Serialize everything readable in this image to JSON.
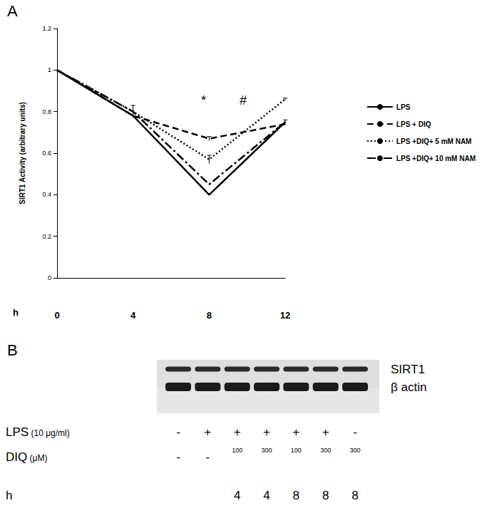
{
  "chart_data": {
    "type": "line",
    "panel": "A",
    "x_label": "h",
    "y_label": "SIRT1 Activity (arbitrary units)",
    "categories": [
      "0",
      "4",
      "8",
      "12"
    ],
    "ylim": [
      0,
      1.2
    ],
    "yticks": [
      0,
      0.2,
      0.4,
      0.6,
      0.8,
      1,
      1.2
    ],
    "grid": false,
    "legend": "right",
    "annotations": [
      "*",
      "#"
    ],
    "series": [
      {
        "name": "LPS",
        "color": "#000000",
        "line_style": "solid",
        "values": [
          1,
          0.78,
          0.4,
          0.75
        ],
        "errors": [
          null,
          null,
          null,
          0.01
        ]
      },
      {
        "name": "LPS + DIQ",
        "color": "#000000",
        "line_style": "dashed",
        "values": [
          1,
          0.78,
          0.67,
          0.74
        ],
        "errors": [
          null,
          null,
          0.01,
          null
        ]
      },
      {
        "name": "LPS +DIQ+ 5 mM NAM",
        "color": "#000000",
        "line_style": "dotted",
        "values": [
          1,
          0.8,
          0.57,
          0.86
        ],
        "errors": [
          null,
          0.03,
          0.02,
          0.005
        ]
      },
      {
        "name": "LPS +DIQ+ 10 mM NAM",
        "color": "#000000",
        "line_style": "dash_dot",
        "values": [
          1,
          0.8,
          0.45,
          0.75
        ],
        "errors": [
          null,
          null,
          null,
          null
        ]
      }
    ]
  },
  "blot": {
    "panel": "B",
    "bands": [
      "SIRT1",
      "β actin"
    ],
    "rows": [
      {
        "label": "LPS",
        "unit": "(10 μg/ml)",
        "cells": [
          "-",
          "+",
          "+",
          "+",
          "+",
          "+",
          "-"
        ]
      },
      {
        "label": "DIQ",
        "unit": "(μM)",
        "cells": [
          "-",
          "-",
          100,
          300,
          100,
          300,
          300
        ]
      },
      {
        "label": "h",
        "unit": null,
        "cells": [
          null,
          null,
          4,
          4,
          8,
          8,
          8
        ]
      }
    ]
  }
}
